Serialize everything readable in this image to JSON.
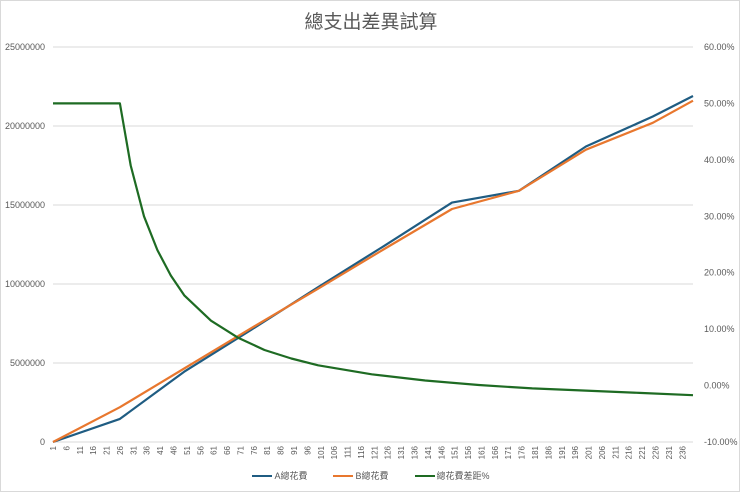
{
  "chart_data": {
    "type": "line",
    "title": "總支出差異試算",
    "xlabel": "",
    "ylabel": "",
    "x_range": [
      1,
      240
    ],
    "x_tick_labels": [
      "1",
      "6",
      "11",
      "16",
      "21",
      "26",
      "31",
      "36",
      "41",
      "46",
      "51",
      "56",
      "61",
      "66",
      "71",
      "76",
      "81",
      "86",
      "91",
      "96",
      "101",
      "106",
      "111",
      "116",
      "121",
      "126",
      "131",
      "136",
      "141",
      "146",
      "151",
      "156",
      "161",
      "166",
      "171",
      "176",
      "181",
      "186",
      "191",
      "196",
      "201",
      "206",
      "211",
      "216",
      "221",
      "226",
      "231",
      "236"
    ],
    "y_left": {
      "ylim": [
        0,
        25000000
      ],
      "ticks": [
        "0",
        "5000000",
        "10000000",
        "15000000",
        "20000000",
        "25000000"
      ]
    },
    "y_right": {
      "ylim": [
        -0.1,
        0.6
      ],
      "ticks": [
        "-10.00%",
        "0.00%",
        "10.00%",
        "20.00%",
        "30.00%",
        "40.00%",
        "50.00%",
        "60.00%"
      ]
    },
    "grid": true,
    "legend_position": "bottom",
    "series": [
      {
        "name": "A總花費",
        "axis": "left",
        "color": "#1f5c82",
        "points": [
          [
            1,
            0
          ],
          [
            26,
            1460000
          ],
          [
            50,
            4450000
          ],
          [
            75,
            7100000
          ],
          [
            100,
            9800000
          ],
          [
            125,
            12450000
          ],
          [
            150,
            15150000
          ],
          [
            175,
            15900000
          ],
          [
            200,
            18700000
          ],
          [
            225,
            20600000
          ],
          [
            240,
            21900000
          ]
        ]
      },
      {
        "name": "B總花費",
        "axis": "left",
        "color": "#e8772e",
        "points": [
          [
            1,
            0
          ],
          [
            26,
            2200000
          ],
          [
            50,
            4650000
          ],
          [
            75,
            7200000
          ],
          [
            100,
            9700000
          ],
          [
            125,
            12250000
          ],
          [
            150,
            14750000
          ],
          [
            175,
            15900000
          ],
          [
            200,
            18500000
          ],
          [
            225,
            20200000
          ],
          [
            240,
            21600000
          ]
        ]
      },
      {
        "name": "總花費差距%",
        "axis": "right",
        "color": "#1e6b23",
        "points": [
          [
            1,
            0.5
          ],
          [
            26,
            0.5
          ],
          [
            30,
            0.39
          ],
          [
            35,
            0.3
          ],
          [
            40,
            0.24
          ],
          [
            45,
            0.195
          ],
          [
            50,
            0.16
          ],
          [
            60,
            0.115
          ],
          [
            70,
            0.085
          ],
          [
            80,
            0.063
          ],
          [
            90,
            0.048
          ],
          [
            100,
            0.036
          ],
          [
            120,
            0.02
          ],
          [
            140,
            0.009
          ],
          [
            160,
            0.001
          ],
          [
            180,
            -0.005
          ],
          [
            200,
            -0.009
          ],
          [
            220,
            -0.013
          ],
          [
            240,
            -0.017
          ]
        ]
      }
    ]
  },
  "legend": {
    "items": [
      {
        "label": "A總花費",
        "color": "#1f5c82"
      },
      {
        "label": "B總花費",
        "color": "#e8772e"
      },
      {
        "label": "總花費差距%",
        "color": "#1e6b23"
      }
    ]
  }
}
